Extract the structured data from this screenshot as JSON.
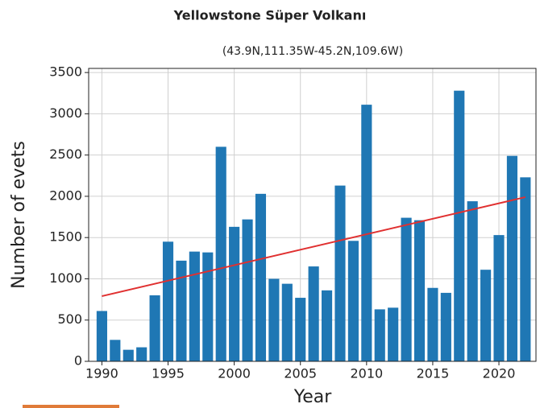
{
  "chart_data": {
    "type": "bar",
    "title": "Yellowstone Süper Volkanı",
    "subtitle": "(43.9N,111.35W-45.2N,109.6W)",
    "xlabel": "Year",
    "ylabel": "Number of evets",
    "x": [
      1990,
      1991,
      1992,
      1993,
      1994,
      1995,
      1996,
      1997,
      1998,
      1999,
      2000,
      2001,
      2002,
      2003,
      2004,
      2005,
      2006,
      2007,
      2008,
      2009,
      2010,
      2011,
      2012,
      2013,
      2014,
      2015,
      2016,
      2017,
      2018,
      2019,
      2020,
      2021,
      2022
    ],
    "values": [
      610,
      260,
      140,
      170,
      800,
      1450,
      1220,
      1330,
      1320,
      2600,
      1630,
      1720,
      2030,
      1000,
      940,
      770,
      1150,
      860,
      2130,
      1460,
      3110,
      630,
      650,
      1740,
      1710,
      890,
      830,
      3280,
      1940,
      1110,
      1530,
      2490,
      2230
    ],
    "color": "#1f77b4",
    "trend": {
      "x": [
        1990,
        2022
      ],
      "values": [
        790,
        1990
      ],
      "color": "#e03030"
    },
    "xlim": [
      1989,
      2022.8
    ],
    "ylim": [
      0,
      3550
    ],
    "xticks": [
      1990,
      1995,
      2000,
      2005,
      2010,
      2015,
      2020
    ],
    "yticks": [
      0,
      500,
      1000,
      1500,
      2000,
      2500,
      3000,
      3500
    ],
    "grid": true
  }
}
